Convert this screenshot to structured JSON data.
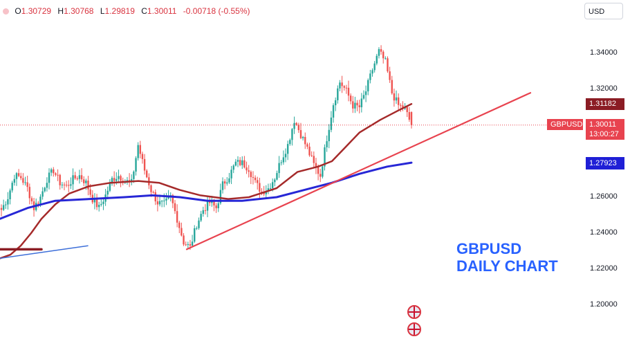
{
  "header": {
    "ohlc": [
      {
        "label": "O",
        "value": "1.30729"
      },
      {
        "label": "H",
        "value": "1.30768"
      },
      {
        "label": "L",
        "value": "1.29819"
      },
      {
        "label": "C",
        "value": "1.30011"
      }
    ],
    "change": "-0.00718 (-0.55%)",
    "currency": "USD"
  },
  "annotation": {
    "line1": "GBPUSD",
    "line2": "DAILY CHART"
  },
  "price_tags": {
    "ma_slow": "1.31182",
    "symbol": "GBPUSD",
    "last_price": "1.30011",
    "countdown": "13:00:27",
    "ma_long": "1.27923"
  },
  "colors": {
    "up": "#26a69a",
    "down": "#ef5350",
    "ma_maroon": "#a52a2a",
    "ma_blue": "#2727d6",
    "trendline": "#e8434f",
    "support": "#3d6fd9",
    "annotation": "#2962ff"
  },
  "chart_data": {
    "type": "candlestick",
    "symbol": "GBPUSD",
    "timeframe": "Daily",
    "y_ticks": [
      "1.34000",
      "1.32000",
      "1.26000",
      "1.24000",
      "1.22000",
      "1.20000"
    ],
    "ylim": [
      1.195,
      1.358
    ],
    "last": {
      "open": 1.30729,
      "high": 1.30768,
      "low": 1.29819,
      "close": 1.30011
    },
    "price_path": [
      1.253,
      1.26,
      1.272,
      1.271,
      1.265,
      1.254,
      1.26,
      1.27,
      1.275,
      1.268,
      1.266,
      1.27,
      1.272,
      1.268,
      1.259,
      1.254,
      1.261,
      1.27,
      1.272,
      1.269,
      1.268,
      1.289,
      1.275,
      1.264,
      1.257,
      1.256,
      1.26,
      1.248,
      1.235,
      1.232,
      1.245,
      1.253,
      1.257,
      1.254,
      1.267,
      1.272,
      1.279,
      1.279,
      1.276,
      1.268,
      1.263,
      1.265,
      1.271,
      1.281,
      1.289,
      1.303,
      1.295,
      1.287,
      1.278,
      1.272,
      1.293,
      1.312,
      1.324,
      1.319,
      1.311,
      1.31,
      1.319,
      1.331,
      1.341,
      1.335,
      1.318,
      1.311,
      1.309,
      1.3001
    ],
    "indicators": [
      {
        "type": "moving_average",
        "color": "maroon",
        "x": [
          0,
          15,
          30,
          45,
          60,
          80,
          100,
          128,
          160,
          200,
          230,
          260,
          290,
          330,
          360,
          400,
          430,
          460,
          480,
          500,
          520,
          550,
          575,
          595
        ],
        "y": [
          1.226,
          1.228,
          1.233,
          1.24,
          1.248,
          1.256,
          1.262,
          1.266,
          1.268,
          1.269,
          1.268,
          1.264,
          1.261,
          1.259,
          1.26,
          1.265,
          1.274,
          1.277,
          1.28,
          1.288,
          1.296,
          1.303,
          1.308,
          1.3118
        ]
      },
      {
        "type": "moving_average",
        "color": "blue",
        "x": [
          0,
          40,
          80,
          130,
          180,
          220,
          260,
          300,
          350,
          400,
          440,
          480,
          520,
          560,
          595
        ],
        "y": [
          1.248,
          1.254,
          1.258,
          1.259,
          1.26,
          1.261,
          1.26,
          1.258,
          1.258,
          1.26,
          1.264,
          1.268,
          1.273,
          1.277,
          1.2792
        ]
      },
      {
        "type": "trendline",
        "color": "red",
        "x": [
          270,
          767
        ],
        "y": [
          1.231,
          1.318
        ]
      },
      {
        "type": "trendline",
        "color": "blue",
        "x": [
          0,
          127
        ],
        "y": [
          1.226,
          1.233
        ]
      },
      {
        "type": "level",
        "color": "maroon",
        "x": [
          0,
          60
        ],
        "y": [
          1.231,
          1.231
        ]
      }
    ]
  }
}
